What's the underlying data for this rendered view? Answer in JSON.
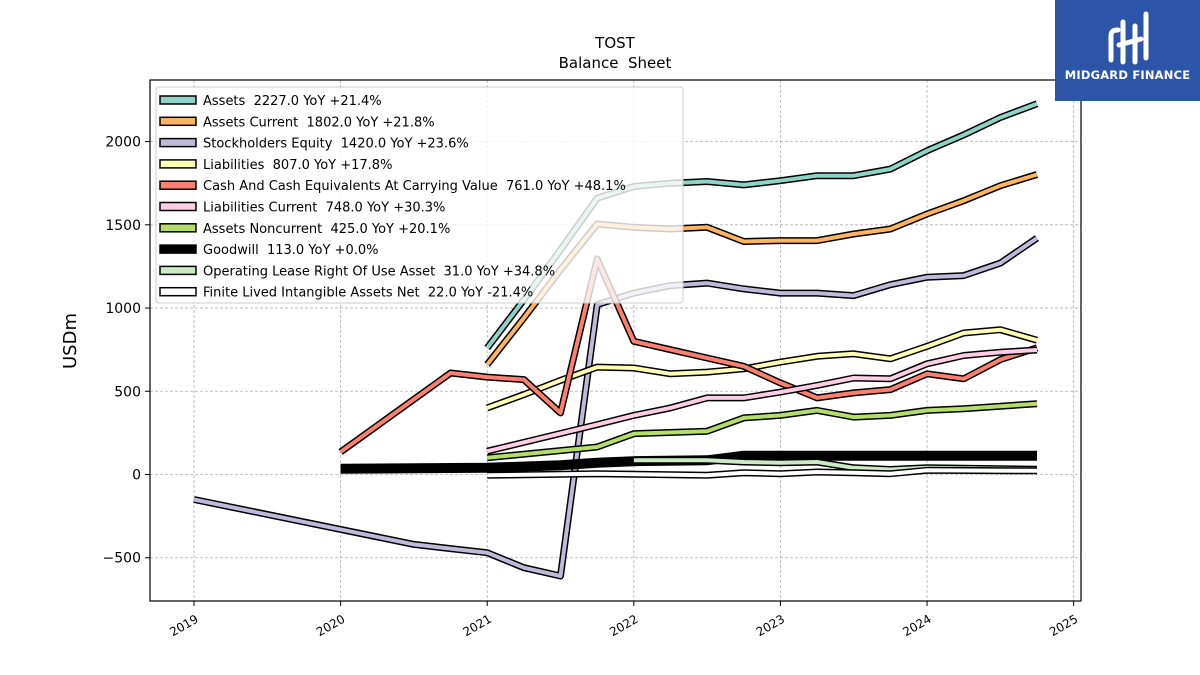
{
  "logo": {
    "text": "MIDGARD FINANCE",
    "background": "#2c55a8",
    "icon": "midgard-logo-icon"
  },
  "chart_data": {
    "type": "line",
    "title": "TOST",
    "subtitle": "Balance  Sheet",
    "ylabel": "USDm",
    "xlabel": "",
    "xlim": [
      2018.7,
      2025.05
    ],
    "ylim": [
      -760,
      2370
    ],
    "x_ticks": [
      2019,
      2020,
      2021,
      2022,
      2023,
      2024,
      2025
    ],
    "x_tick_labels": [
      "2019",
      "2020",
      "2021",
      "2022",
      "2023",
      "2024",
      "2025"
    ],
    "y_ticks": [
      -500,
      0,
      500,
      1000,
      1500,
      2000
    ],
    "y_tick_labels": [
      "−500",
      "0",
      "500",
      "1000",
      "1500",
      "2000"
    ],
    "grid": true,
    "legend_position": "top-left",
    "series": [
      {
        "name": "Assets  2227.0 YoY +21.4%",
        "color": "#8dd3c7",
        "points": [
          [
            2021.0,
            760
          ],
          [
            2021.25,
            1050
          ],
          [
            2021.5,
            1350
          ],
          [
            2021.75,
            1660
          ],
          [
            2022.0,
            1730
          ],
          [
            2022.25,
            1750
          ],
          [
            2022.5,
            1760
          ],
          [
            2022.75,
            1740
          ],
          [
            2023.0,
            1765
          ],
          [
            2023.25,
            1795
          ],
          [
            2023.5,
            1795
          ],
          [
            2023.75,
            1835
          ],
          [
            2024.0,
            1945
          ],
          [
            2024.25,
            2040
          ],
          [
            2024.5,
            2145
          ],
          [
            2024.75,
            2227
          ]
        ]
      },
      {
        "name": "Assets Current  1802.0 YoY +21.8%",
        "color": "#fdb462",
        "points": [
          [
            2021.0,
            660
          ],
          [
            2021.25,
            940
          ],
          [
            2021.5,
            1230
          ],
          [
            2021.75,
            1505
          ],
          [
            2022.0,
            1485
          ],
          [
            2022.25,
            1475
          ],
          [
            2022.5,
            1485
          ],
          [
            2022.75,
            1400
          ],
          [
            2023.0,
            1405
          ],
          [
            2023.25,
            1405
          ],
          [
            2023.5,
            1445
          ],
          [
            2023.75,
            1475
          ],
          [
            2024.0,
            1565
          ],
          [
            2024.25,
            1645
          ],
          [
            2024.5,
            1735
          ],
          [
            2024.75,
            1802
          ]
        ]
      },
      {
        "name": "Stockholders Equity  1420.0 YoY +23.6%",
        "color": "#bebada",
        "points": [
          [
            2019.0,
            -150
          ],
          [
            2020.0,
            -330
          ],
          [
            2020.5,
            -420
          ],
          [
            2020.75,
            -445
          ],
          [
            2021.0,
            -470
          ],
          [
            2021.25,
            -560
          ],
          [
            2021.5,
            -610
          ],
          [
            2021.75,
            1020
          ],
          [
            2022.0,
            1090
          ],
          [
            2022.25,
            1135
          ],
          [
            2022.5,
            1150
          ],
          [
            2022.75,
            1115
          ],
          [
            2023.0,
            1090
          ],
          [
            2023.25,
            1090
          ],
          [
            2023.5,
            1075
          ],
          [
            2023.75,
            1140
          ],
          [
            2024.0,
            1185
          ],
          [
            2024.25,
            1195
          ],
          [
            2024.5,
            1270
          ],
          [
            2024.75,
            1420
          ]
        ]
      },
      {
        "name": "Liabilities  807.0 YoY +17.8%",
        "color": "#ffffb3",
        "points": [
          [
            2021.0,
            400
          ],
          [
            2021.25,
            480
          ],
          [
            2021.5,
            565
          ],
          [
            2021.75,
            645
          ],
          [
            2022.0,
            640
          ],
          [
            2022.25,
            605
          ],
          [
            2022.5,
            615
          ],
          [
            2022.75,
            635
          ],
          [
            2023.0,
            675
          ],
          [
            2023.25,
            710
          ],
          [
            2023.5,
            725
          ],
          [
            2023.75,
            695
          ],
          [
            2024.0,
            770
          ],
          [
            2024.25,
            850
          ],
          [
            2024.5,
            870
          ],
          [
            2024.75,
            807
          ]
        ]
      },
      {
        "name": "Cash And Cash Equivalents At Carrying Value  761.0 YoY +48.1%",
        "color": "#fb8072",
        "points": [
          [
            2020.0,
            135
          ],
          [
            2020.75,
            610
          ],
          [
            2021.0,
            585
          ],
          [
            2021.25,
            570
          ],
          [
            2021.5,
            370
          ],
          [
            2021.75,
            1295
          ],
          [
            2022.0,
            800
          ],
          [
            2022.25,
            750
          ],
          [
            2022.5,
            700
          ],
          [
            2022.75,
            650
          ],
          [
            2023.0,
            550
          ],
          [
            2023.25,
            460
          ],
          [
            2023.5,
            490
          ],
          [
            2023.75,
            510
          ],
          [
            2024.0,
            605
          ],
          [
            2024.25,
            575
          ],
          [
            2024.5,
            690
          ],
          [
            2024.75,
            761
          ]
        ]
      },
      {
        "name": "Liabilities Current  748.0 YoY +30.3%",
        "color": "#fccde5",
        "points": [
          [
            2021.0,
            140
          ],
          [
            2021.75,
            300
          ],
          [
            2022.0,
            355
          ],
          [
            2022.25,
            400
          ],
          [
            2022.5,
            460
          ],
          [
            2022.75,
            460
          ],
          [
            2023.0,
            495
          ],
          [
            2023.25,
            535
          ],
          [
            2023.5,
            580
          ],
          [
            2023.75,
            575
          ],
          [
            2024.0,
            665
          ],
          [
            2024.25,
            715
          ],
          [
            2024.5,
            735
          ],
          [
            2024.75,
            748
          ]
        ]
      },
      {
        "name": "Assets Noncurrent  425.0 YoY +20.1%",
        "color": "#b3de69",
        "points": [
          [
            2021.0,
            100
          ],
          [
            2021.75,
            165
          ],
          [
            2022.0,
            245
          ],
          [
            2022.5,
            260
          ],
          [
            2022.75,
            340
          ],
          [
            2023.0,
            355
          ],
          [
            2023.25,
            385
          ],
          [
            2023.5,
            345
          ],
          [
            2023.75,
            355
          ],
          [
            2024.0,
            385
          ],
          [
            2024.25,
            395
          ],
          [
            2024.5,
            410
          ],
          [
            2024.75,
            425
          ]
        ]
      },
      {
        "name": "Goodwill  113.0 YoY +0.0%",
        "color": "#000000",
        "points": [
          [
            2020.0,
            35
          ],
          [
            2021.0,
            40
          ],
          [
            2021.5,
            55
          ],
          [
            2021.75,
            70
          ],
          [
            2022.0,
            80
          ],
          [
            2022.5,
            85
          ],
          [
            2022.75,
            113
          ],
          [
            2023.25,
            113
          ],
          [
            2024.75,
            113
          ]
        ]
      },
      {
        "name": "Operating Lease Right Of Use Asset  31.0 YoY +34.8%",
        "color": "#ccebc5",
        "points": [
          [
            2022.0,
            85
          ],
          [
            2022.5,
            85
          ],
          [
            2022.75,
            75
          ],
          [
            2023.0,
            70
          ],
          [
            2023.25,
            75
          ],
          [
            2023.5,
            40
          ],
          [
            2023.75,
            30
          ],
          [
            2024.0,
            40
          ],
          [
            2024.75,
            31
          ]
        ]
      },
      {
        "name": "Finite Lived Intangible Assets Net  22.0 YoY -21.4%",
        "color": "#ffffff",
        "points": [
          [
            2021.0,
            -5
          ],
          [
            2021.75,
            5
          ],
          [
            2022.5,
            -5
          ],
          [
            2022.75,
            10
          ],
          [
            2023.0,
            5
          ],
          [
            2023.25,
            15
          ],
          [
            2023.5,
            10
          ],
          [
            2023.75,
            5
          ],
          [
            2024.0,
            25
          ],
          [
            2024.75,
            22
          ]
        ]
      }
    ]
  }
}
